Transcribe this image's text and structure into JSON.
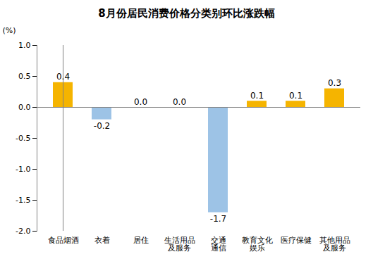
{
  "chart_data": {
    "type": "bar",
    "title": "8月份居民消费价格分类别环比涨跌幅",
    "y_label": "(%)",
    "categories": [
      "食品烟酒",
      "衣着",
      "居住",
      "生活用品\n及服务",
      "交通\n通信",
      "教育文化\n娱乐",
      "医疗保健",
      "其他用品\n及服务"
    ],
    "values": [
      0.4,
      -0.2,
      0.0,
      0.0,
      -1.7,
      0.1,
      0.1,
      0.3
    ],
    "value_labels": [
      "0.4",
      "-0.2",
      "0.0",
      "0.0",
      "-1.7",
      "0.1",
      "0.1",
      "0.3"
    ],
    "colors": [
      "#F5B400",
      "#9DC3E6",
      "#F5B400",
      "#F5B400",
      "#9DC3E6",
      "#F5B400",
      "#F5B400",
      "#F5B400"
    ],
    "ylim": [
      -2.0,
      1.0
    ],
    "yticks": [
      {
        "value": -2.0,
        "label": "-2.0"
      },
      -1.5,
      {
        "value": -1.0,
        "label": "-1.0"
      },
      -0.5,
      {
        "value": 0.0,
        "label": "0.0"
      },
      0.5,
      {
        "value": 1.0,
        "label": "1.0"
      }
    ],
    "grid": false,
    "data_labels": true
  }
}
